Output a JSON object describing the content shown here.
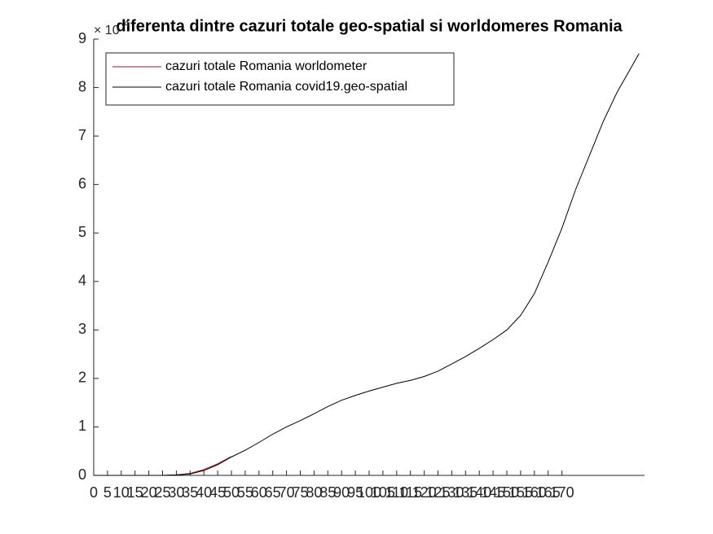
{
  "chart_data": {
    "type": "line",
    "title": "diferenta dintre cazuri totale geo-spatial si worldomeres  Romania",
    "y_multiplier": {
      "base": "× 10",
      "exponent": "4"
    },
    "x": [
      0,
      5,
      10,
      15,
      20,
      25,
      30,
      35,
      40,
      45,
      50,
      55,
      60,
      65,
      70,
      75,
      80,
      85,
      90,
      95,
      100,
      105,
      110,
      115,
      120,
      125,
      130,
      135,
      140,
      145,
      150,
      155,
      160,
      165,
      170,
      175,
      180,
      185,
      190,
      195,
      198
    ],
    "series": [
      {
        "name": "cazuri totale Romania worldometer",
        "color": "#a2142f",
        "values": [
          0,
          0,
          0,
          0,
          0,
          0,
          0.01,
          0.04,
          0.12,
          0.24,
          0.39,
          null,
          null,
          null,
          null,
          null,
          null,
          null,
          null,
          null,
          null,
          null,
          null,
          null,
          null,
          null,
          null,
          null,
          null,
          null,
          null,
          null,
          null,
          null,
          null,
          null,
          null,
          null,
          null,
          null,
          null
        ]
      },
      {
        "name": "cazuri totale Romania covid19.geo-spatial",
        "color": "#000000",
        "values": [
          0,
          0,
          0,
          0,
          0,
          0,
          0.01,
          0.03,
          0.1,
          0.22,
          0.38,
          0.52,
          0.68,
          0.85,
          1.0,
          1.13,
          1.27,
          1.42,
          1.55,
          1.65,
          1.74,
          1.82,
          1.9,
          1.96,
          2.04,
          2.15,
          2.3,
          2.45,
          2.62,
          2.8,
          3.0,
          3.3,
          3.75,
          4.4,
          5.1,
          5.9,
          6.6,
          7.3,
          7.9,
          8.4,
          8.7
        ]
      }
    ],
    "xlim": [
      0,
      200
    ],
    "xticks": [
      0,
      5,
      10,
      15,
      20,
      25,
      30,
      35,
      40,
      45,
      50,
      55,
      60,
      65,
      70,
      75,
      80,
      85,
      90,
      95,
      100,
      105,
      110,
      115,
      120,
      125,
      130,
      135,
      140,
      145,
      150,
      155,
      160,
      165,
      170
    ],
    "ylim": [
      0,
      9
    ],
    "yticks": [
      0,
      1,
      2,
      3,
      4,
      5,
      6,
      7,
      8,
      9
    ],
    "legend": "top-left",
    "grid": false
  }
}
